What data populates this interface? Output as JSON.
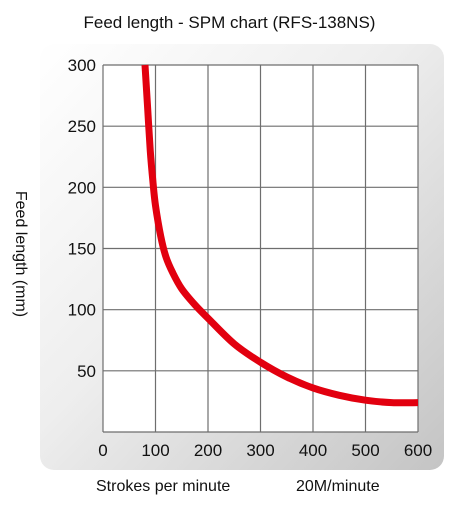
{
  "chart_data": {
    "type": "line",
    "title": "Feed length - SPM chart (RFS-138NS)",
    "xlabel": "Strokes per minute",
    "xlabel_note": "20M/minute",
    "ylabel": "Feed length (mm)",
    "xlim": [
      0,
      600
    ],
    "ylim": [
      0,
      300
    ],
    "x_ticks": [
      "0",
      "100",
      "200",
      "300",
      "400",
      "500",
      "600"
    ],
    "y_ticks": [
      "50",
      "100",
      "150",
      "200",
      "250",
      "300"
    ],
    "grid": true,
    "series": [
      {
        "color": "#e2000f",
        "x": [
          80,
          85,
          90,
          95,
          100,
          110,
          120,
          133,
          150,
          175,
          200,
          250,
          300,
          350,
          400,
          450,
          500,
          550,
          600
        ],
        "y": [
          300,
          265,
          230,
          205,
          185,
          160,
          143,
          130,
          117,
          104,
          93,
          72,
          57,
          45,
          36,
          30,
          26,
          24,
          24
        ]
      }
    ]
  },
  "colors": {
    "panel_light": "#ffffff",
    "panel_dark": "#c8c8c8",
    "grid": "#6e6e6e",
    "curve": "#e2000f"
  }
}
